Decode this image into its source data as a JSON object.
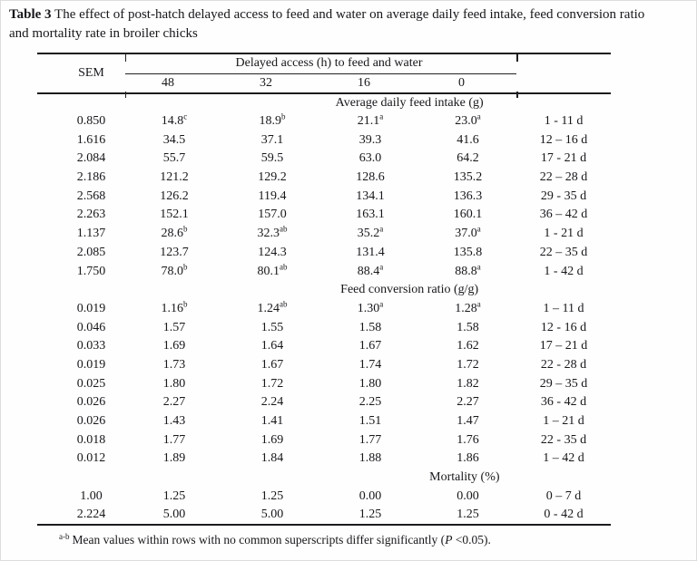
{
  "page": {
    "background": "#ffffff",
    "text_color": "#17171c",
    "rule_color": "#1b1b1e"
  },
  "title": {
    "label": "Table 3",
    "line1_rest": "The effect of post-hatch delayed access to feed and water on average daily feed intake, feed conversion ratio",
    "line2": "and mortality rate in broiler chicks"
  },
  "table": {
    "sem_header": "SEM",
    "group_header": "Delayed access (h) to feed and water",
    "delay_headers": [
      "48",
      "32",
      "16",
      "0"
    ],
    "period_header": "",
    "sections": [
      {
        "title": "Average daily feed intake (g)",
        "rows": [
          {
            "sem": "0.850",
            "values": [
              "14.8^c",
              "18.9^b",
              "21.1^a",
              "23.0^a"
            ],
            "period": "1 - 11 d"
          },
          {
            "sem": "1.616",
            "values": [
              "34.5",
              "37.1",
              "39.3",
              "41.6"
            ],
            "period": "12 – 16 d"
          },
          {
            "sem": "2.084",
            "values": [
              "55.7",
              "59.5",
              "63.0",
              "64.2"
            ],
            "period": "17 - 21 d"
          },
          {
            "sem": "2.186",
            "values": [
              "121.2",
              "129.2",
              "128.6",
              "135.2"
            ],
            "period": "22 – 28 d"
          },
          {
            "sem": "2.568",
            "values": [
              "126.2",
              "119.4",
              "134.1",
              "136.3"
            ],
            "period": "29 - 35 d"
          },
          {
            "sem": "2.263",
            "values": [
              "152.1",
              "157.0",
              "163.1",
              "160.1"
            ],
            "period": "36 – 42 d"
          },
          {
            "sem": "1.137",
            "values": [
              "28.6^b",
              "32.3^ab",
              "35.2^a",
              "37.0^a"
            ],
            "period": "1 - 21 d"
          },
          {
            "sem": "2.085",
            "values": [
              "123.7",
              "124.3",
              "131.4",
              "135.8"
            ],
            "period": "22 – 35 d"
          },
          {
            "sem": "1.750",
            "values": [
              "78.0^b",
              "80.1^ab",
              "88.4^a",
              "88.8^a"
            ],
            "period": "1 - 42 d"
          }
        ]
      },
      {
        "title": "Feed conversion ratio (g/g)",
        "rows": [
          {
            "sem": "0.019",
            "values": [
              "1.16^b",
              "1.24^ab",
              "1.30^a",
              "1.28^a"
            ],
            "period": "1 – 11 d"
          },
          {
            "sem": "0.046",
            "values": [
              "1.57",
              "1.55",
              "1.58",
              "1.58"
            ],
            "period": "12 - 16 d"
          },
          {
            "sem": "0.033",
            "values": [
              "1.69",
              "1.64",
              "1.67",
              "1.62"
            ],
            "period": "17 – 21 d"
          },
          {
            "sem": "0.019",
            "values": [
              "1.73",
              "1.67",
              "1.74",
              "1.72"
            ],
            "period": "22 - 28 d"
          },
          {
            "sem": "0.025",
            "values": [
              "1.80",
              "1.72",
              "1.80",
              "1.82"
            ],
            "period": "29 – 35 d"
          },
          {
            "sem": "0.026",
            "values": [
              "2.27",
              "2.24",
              "2.25",
              "2.27"
            ],
            "period": "36 - 42 d"
          },
          {
            "sem": "0.026",
            "values": [
              "1.43",
              "1.41",
              "1.51",
              "1.47"
            ],
            "period": "1 – 21 d"
          },
          {
            "sem": "0.018",
            "values": [
              "1.77",
              "1.69",
              "1.77",
              "1.76"
            ],
            "period": "22 - 35 d"
          },
          {
            "sem": "0.012",
            "values": [
              "1.89",
              "1.84",
              "1.88",
              "1.86"
            ],
            "period": "1 – 42 d"
          }
        ]
      },
      {
        "title": "Mortality (%)",
        "rows": [
          {
            "sem": "1.00",
            "values": [
              "1.25",
              "1.25",
              "0.00",
              "0.00"
            ],
            "period": "0 – 7 d"
          },
          {
            "sem": "2.224",
            "values": [
              "5.00",
              "5.00",
              "1.25",
              "1.25"
            ],
            "period": "0 - 42 d"
          }
        ]
      }
    ]
  },
  "footnote": {
    "marker": "a-b",
    "text": "Mean values within rows with no common superscripts differ significantly (",
    "p_symbol": "P",
    "tail": " <0.05)."
  }
}
